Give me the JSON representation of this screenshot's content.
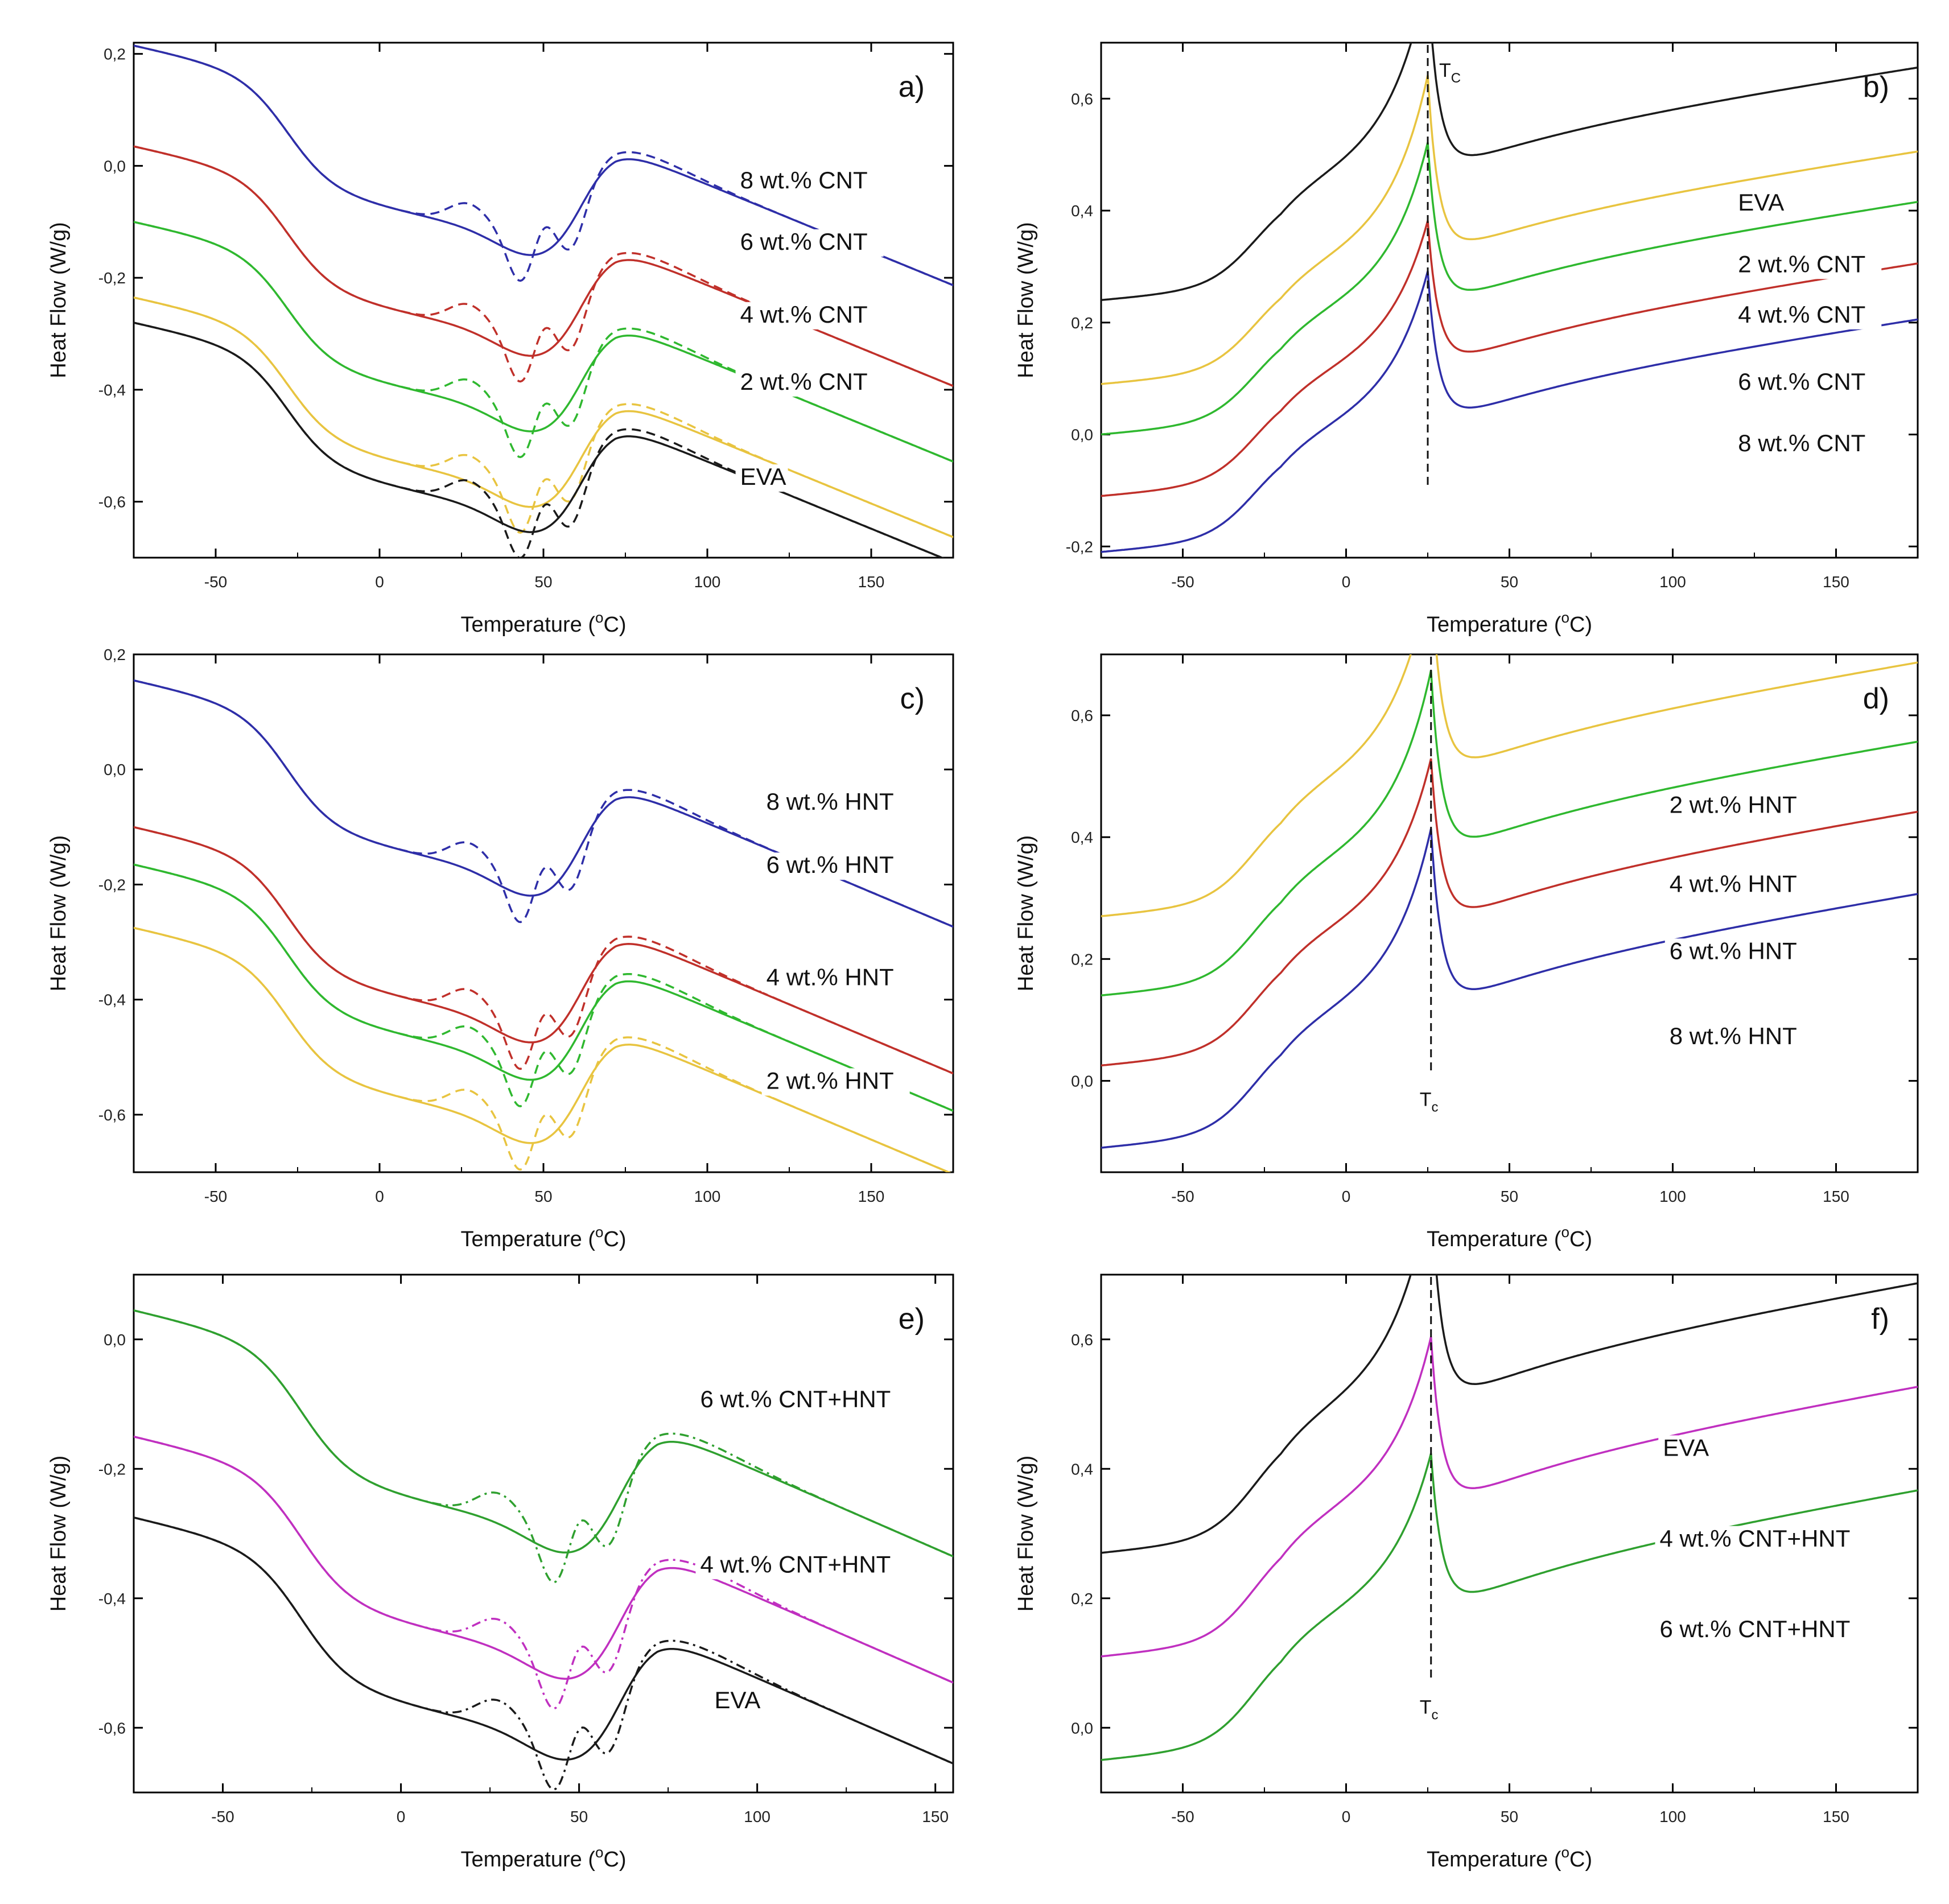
{
  "chart_data": [
    {
      "id": "a",
      "type": "line",
      "panel_label": "a)",
      "xlabel": "Temperature (",
      "xlabel_sup": "o",
      "xlabel_tail": "C)",
      "ylabel": "Heat Flow  (W/g)",
      "xlim": [
        -75,
        175
      ],
      "ylim": [
        -0.7,
        0.22
      ],
      "xticks": [
        -50,
        0,
        50,
        100,
        150
      ],
      "xtick_labels": [
        "-50",
        "0",
        "50",
        "100",
        "150"
      ],
      "yticks": [
        -0.6,
        -0.4,
        -0.2,
        0.0,
        0.2
      ],
      "ytick_labels": [
        "-0,6",
        "-0,4",
        "-0,2",
        "0,0",
        "0,2"
      ],
      "curve_kind": "melt",
      "series": [
        {
          "name": "8 wt.% CNT",
          "color": "#2e2ea8",
          "offset": 0.215,
          "x_end": 175,
          "label_at": [
            110,
            -0.04
          ]
        },
        {
          "name": "6 wt.% CNT",
          "color": "#c0302a",
          "offset": 0.035,
          "x_end": 175,
          "label_at": [
            110,
            -0.15
          ]
        },
        {
          "name": "4 wt.% CNT",
          "color": "#2fb82f",
          "offset": -0.1,
          "x_end": 175,
          "label_at": [
            110,
            -0.28
          ]
        },
        {
          "name": "2 wt.% CNT",
          "color": "#e8c440",
          "offset": -0.235,
          "x_end": 175,
          "label_at": [
            110,
            -0.4
          ]
        },
        {
          "name": "EVA",
          "color": "#1a1a1a",
          "offset": -0.28,
          "x_end": 175,
          "label_at": [
            110,
            -0.57
          ]
        }
      ]
    },
    {
      "id": "b",
      "type": "line",
      "panel_label": "b)",
      "xlabel": "Temperature (",
      "xlabel_sup": "o",
      "xlabel_tail": "C)",
      "ylabel": "Heat Flow  (W/g)",
      "xlim": [
        -75,
        175
      ],
      "ylim": [
        -0.22,
        0.7
      ],
      "xticks": [
        -50,
        0,
        50,
        100,
        150
      ],
      "xtick_labels": [
        "-50",
        "0",
        "50",
        "100",
        "150"
      ],
      "yticks": [
        -0.2,
        0.0,
        0.2,
        0.4,
        0.6
      ],
      "ytick_labels": [
        "-0,2",
        "0,0",
        "0,2",
        "0,4",
        "0,6"
      ],
      "curve_kind": "cryst",
      "tc_x": 25,
      "tc_label": "T",
      "tc_sub": "C",
      "tc_label_pos": "top",
      "series": [
        {
          "name": "EVA",
          "color": "#1a1a1a",
          "offset": 0.24,
          "peak": 0.38,
          "x_end": 175,
          "label_at": [
            120,
            0.4
          ]
        },
        {
          "name": "2 wt.% CNT",
          "color": "#e8c440",
          "offset": 0.09,
          "peak": 0.35,
          "x_end": 175,
          "label_at": [
            120,
            0.29
          ]
        },
        {
          "name": "4 wt.% CNT",
          "color": "#2fb82f",
          "offset": 0.0,
          "peak": 0.32,
          "x_end": 175,
          "label_at": [
            120,
            0.2
          ]
        },
        {
          "name": "6 wt.% CNT",
          "color": "#c0302a",
          "offset": -0.11,
          "peak": 0.29,
          "x_end": 175,
          "label_at": [
            120,
            0.08
          ]
        },
        {
          "name": "8 wt.% CNT",
          "color": "#2e2ea8",
          "offset": -0.21,
          "peak": 0.3,
          "x_end": 175,
          "label_at": [
            120,
            -0.03
          ]
        }
      ]
    },
    {
      "id": "c",
      "type": "line",
      "panel_label": "c)",
      "xlabel": "Temperature (",
      "xlabel_sup": "o",
      "xlabel_tail": "C)",
      "ylabel": "Heat Flow  (W/g)",
      "xlim": [
        -75,
        175
      ],
      "ylim": [
        -0.7,
        0.2
      ],
      "xticks": [
        -50,
        0,
        50,
        100,
        150
      ],
      "xtick_labels": [
        "-50",
        "0",
        "50",
        "100",
        "150"
      ],
      "yticks": [
        -0.6,
        -0.4,
        -0.2,
        0.0,
        0.2
      ],
      "ytick_labels": [
        "-0,6",
        "-0,4",
        "-0,2",
        "0,0",
        "0,2"
      ],
      "curve_kind": "melt",
      "series": [
        {
          "name": "8 wt.% HNT",
          "color": "#2e2ea8",
          "offset": 0.155,
          "x_end": 175,
          "label_at": [
            118,
            -0.07
          ]
        },
        {
          "name": "6 wt.% HNT",
          "color": "#c0302a",
          "offset": -0.1,
          "x_end": 175,
          "label_at": [
            118,
            -0.18
          ]
        },
        {
          "name": "4 wt.% HNT",
          "color": "#2fb82f",
          "offset": -0.165,
          "x_end": 175,
          "label_at": [
            118,
            -0.375
          ]
        },
        {
          "name": "2 wt.% HNT",
          "color": "#e8c440",
          "offset": -0.275,
          "x_end": 175,
          "label_at": [
            118,
            -0.555
          ]
        }
      ]
    },
    {
      "id": "d",
      "type": "line",
      "panel_label": "d)",
      "xlabel": "Temperature (",
      "xlabel_sup": "o",
      "xlabel_tail": "C)",
      "ylabel": "Heat Flow  (W/g)",
      "xlim": [
        -75,
        175
      ],
      "ylim": [
        -0.15,
        0.7
      ],
      "xticks": [
        -50,
        0,
        50,
        100,
        150
      ],
      "xtick_labels": [
        "-50",
        "0",
        "50",
        "100",
        "150"
      ],
      "yticks": [
        0.0,
        0.2,
        0.4,
        0.6
      ],
      "ytick_labels": [
        "0,0",
        "0,2",
        "0,4",
        "0,6"
      ],
      "curve_kind": "cryst",
      "tc_x": 26,
      "tc_label": "T",
      "tc_sub": "c",
      "tc_label_pos": "bottom",
      "series": [
        {
          "name": "2 wt.% HNT",
          "color": "#e8c440",
          "offset": 0.27,
          "peak": 0.36,
          "x_end": 175,
          "label_at": [
            99,
            0.44
          ]
        },
        {
          "name": "4 wt.% HNT",
          "color": "#2fb82f",
          "offset": 0.14,
          "peak": 0.33,
          "x_end": 175,
          "label_at": [
            99,
            0.31
          ]
        },
        {
          "name": "6 wt.% HNT",
          "color": "#c0302a",
          "offset": 0.025,
          "peak": 0.3,
          "x_end": 175,
          "label_at": [
            99,
            0.2
          ]
        },
        {
          "name": "8 wt.% HNT",
          "color": "#2e2ea8",
          "offset": -0.11,
          "peak": 0.32,
          "x_end": 175,
          "label_at": [
            99,
            0.06
          ]
        }
      ]
    },
    {
      "id": "e",
      "type": "line",
      "panel_label": "e)",
      "xlabel": "Temperature (",
      "xlabel_sup": "o",
      "xlabel_tail": "C)",
      "ylabel": "Heat Flow  (W/g)",
      "xlim": [
        -75,
        155
      ],
      "ylim": [
        -0.7,
        0.1
      ],
      "xticks": [
        -50,
        0,
        50,
        100,
        150
      ],
      "xtick_labels": [
        "-50",
        "0",
        "50",
        "100",
        "150"
      ],
      "yticks": [
        -0.6,
        -0.4,
        -0.2,
        0.0
      ],
      "ytick_labels": [
        "-0,6",
        "-0,4",
        "-0,2",
        "0,0"
      ],
      "curve_kind": "melt",
      "series": [
        {
          "name": "6 wt.% CNT+HNT",
          "color": "#2fa02f",
          "offset": 0.045,
          "x_end": 155,
          "label_at": [
            84,
            -0.105
          ]
        },
        {
          "name": "4 wt.% CNT+HNT",
          "color": "#c030c0",
          "offset": -0.15,
          "x_end": 155,
          "label_at": [
            84,
            -0.36
          ]
        },
        {
          "name": "EVA",
          "color": "#1a1a1a",
          "offset": -0.275,
          "x_end": 155,
          "label_at": [
            88,
            -0.57
          ]
        }
      ]
    },
    {
      "id": "f",
      "type": "line",
      "panel_label": "f)",
      "xlabel": "Temperature (",
      "xlabel_sup": "o",
      "xlabel_tail": "C)",
      "ylabel": "Heat Flow  (W/g)",
      "xlim": [
        -75,
        175
      ],
      "ylim": [
        -0.1,
        0.7
      ],
      "xticks": [
        -50,
        0,
        50,
        100,
        150
      ],
      "xtick_labels": [
        "-50",
        "0",
        "50",
        "100",
        "150"
      ],
      "yticks": [
        0.0,
        0.2,
        0.4,
        0.6
      ],
      "ytick_labels": [
        "0,0",
        "0,2",
        "0,4",
        "0,6"
      ],
      "curve_kind": "cryst",
      "tc_x": 26,
      "tc_label": "T",
      "tc_sub": "c",
      "tc_label_pos": "bottom",
      "series": [
        {
          "name": "EVA",
          "color": "#1a1a1a",
          "offset": 0.27,
          "peak": 0.36,
          "x_end": 175,
          "label_at": [
            97,
            0.42
          ]
        },
        {
          "name": "4 wt.% CNT+HNT",
          "color": "#c030c0",
          "offset": 0.11,
          "peak": 0.29,
          "x_end": 175,
          "label_at": [
            96,
            0.28
          ]
        },
        {
          "name": "6 wt.% CNT+HNT",
          "color": "#2fa02f",
          "offset": -0.05,
          "peak": 0.27,
          "x_end": 175,
          "label_at": [
            96,
            0.14
          ]
        }
      ]
    }
  ]
}
